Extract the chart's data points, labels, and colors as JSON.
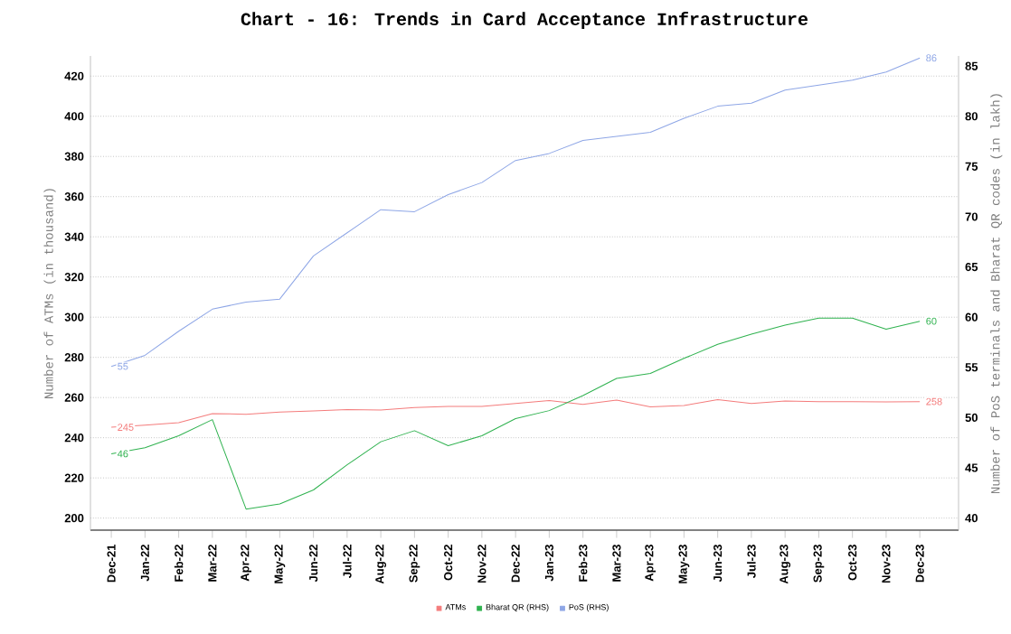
{
  "chart_data": {
    "type": "line",
    "title": "Chart - 16: Trends in Card Acceptance Infrastructure",
    "ylabel": "Number of ATMs (in thousand)",
    "y2label": "Number of PoS terminals and Bharat QR codes (in lakh)",
    "categories": [
      "Dec-21",
      "Jan-22",
      "Feb-22",
      "Mar-22",
      "Apr-22",
      "May-22",
      "Jun-22",
      "Jul-22",
      "Aug-22",
      "Sep-22",
      "Oct-22",
      "Nov-22",
      "Dec-22",
      "Jan-23",
      "Feb-23",
      "Mar-23",
      "Apr-23",
      "May-23",
      "Jun-23",
      "Jul-23",
      "Aug-23",
      "Sep-23",
      "Oct-23",
      "Nov-23",
      "Dec-23"
    ],
    "series": [
      {
        "name": "ATMs",
        "color": "#f47c7c",
        "values": [
          245.2,
          246.3,
          247.5,
          252,
          251.7,
          252.8,
          253.3,
          254,
          253.8,
          255,
          255.6,
          255.6,
          257,
          258.5,
          256.6,
          258.7,
          255.4,
          256,
          259,
          257,
          258.3,
          258,
          258,
          257.8,
          258
        ],
        "value_labels": [
          "245",
          null,
          null,
          null,
          null,
          null,
          null,
          null,
          null,
          null,
          null,
          null,
          null,
          null,
          null,
          null,
          null,
          null,
          null,
          null,
          null,
          null,
          null,
          null,
          "258"
        ]
      },
      {
        "name": "Bharat QR (RHS)",
        "color": "#2fb24f",
        "axis": "y2",
        "values": [
          46.4,
          47.0,
          48.2,
          49.8,
          40.9,
          41.4,
          42.8,
          45.3,
          47.6,
          48.7,
          47.2,
          48.2,
          49.9,
          50.7,
          52.2,
          53.9,
          54.4,
          55.9,
          57.3,
          58.3,
          59.2,
          59.9,
          59.9,
          58.8,
          59.6
        ],
        "value_labels": [
          "46",
          null,
          null,
          null,
          null,
          null,
          null,
          null,
          null,
          null,
          null,
          null,
          null,
          null,
          null,
          null,
          null,
          null,
          null,
          null,
          null,
          null,
          null,
          null,
          "60"
        ]
      },
      {
        "name": "PoS (RHS)",
        "color": "#8ea6e6",
        "axis": "y2",
        "values": [
          55.1,
          56.2,
          58.6,
          60.8,
          61.5,
          61.8,
          66.1,
          68.4,
          70.7,
          70.5,
          72.2,
          73.4,
          75.6,
          76.3,
          77.6,
          78.0,
          78.4,
          79.8,
          81.0,
          81.3,
          82.6,
          83.1,
          83.6,
          84.4,
          85.8
        ],
        "value_labels": [
          "55",
          null,
          null,
          null,
          null,
          null,
          null,
          null,
          null,
          null,
          null,
          null,
          null,
          null,
          null,
          null,
          null,
          null,
          null,
          null,
          null,
          null,
          null,
          null,
          "86"
        ]
      }
    ],
    "ylim": [
      194,
      430
    ],
    "yticks": [
      200,
      220,
      240,
      260,
      280,
      300,
      320,
      340,
      360,
      380,
      400,
      420
    ],
    "y2lim": [
      38.8,
      86
    ],
    "y2ticks": [
      40,
      45,
      50,
      55,
      60,
      65,
      70,
      75,
      80,
      85
    ],
    "grid": "y",
    "legend": "bottom",
    "marker": "none"
  }
}
